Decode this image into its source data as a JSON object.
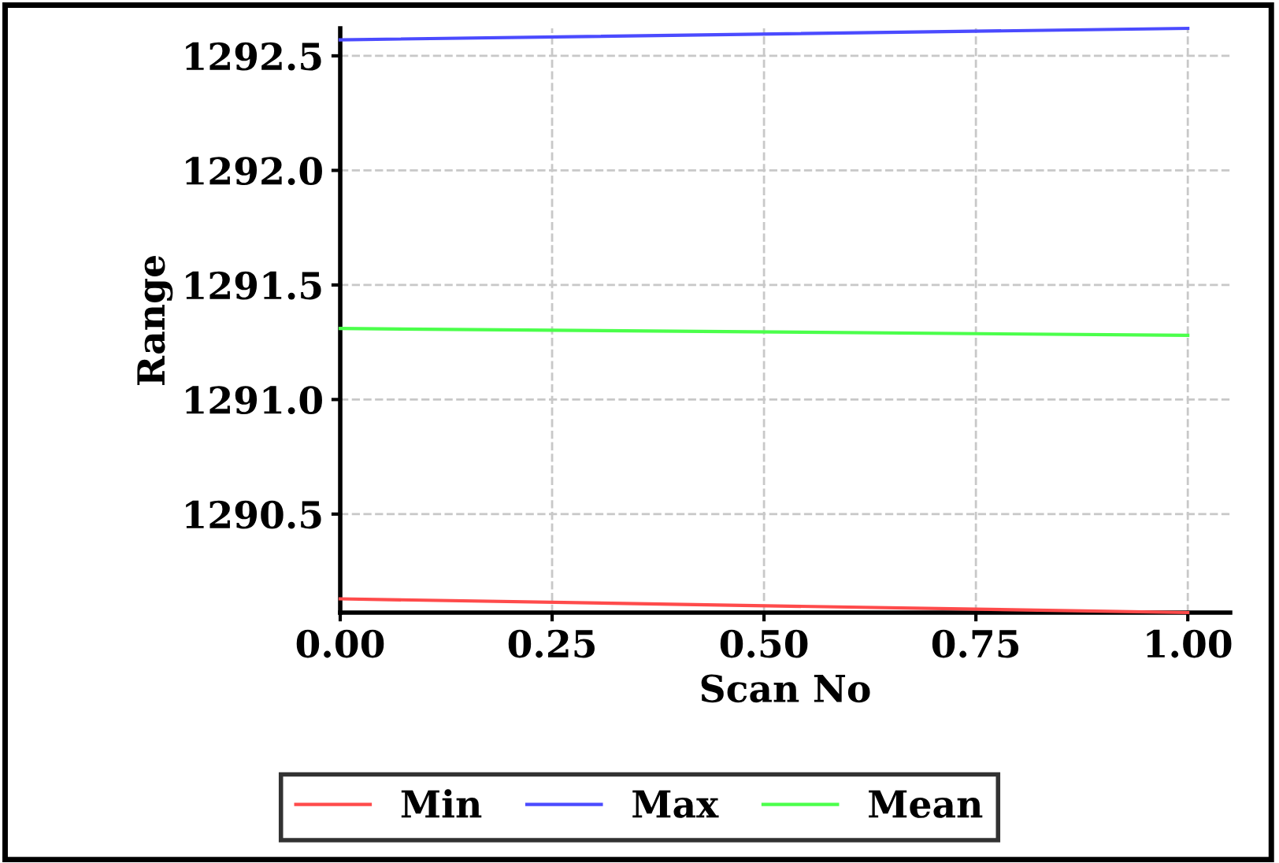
{
  "chart_data": {
    "type": "line",
    "xlabel": "Scan No",
    "ylabel": "Range",
    "x": [
      0,
      1
    ],
    "series": [
      {
        "name": "Min",
        "color": "#ff4b4b",
        "values": [
          1290.13,
          1290.07
        ]
      },
      {
        "name": "Max",
        "color": "#4b4bff",
        "values": [
          1292.57,
          1292.62
        ]
      },
      {
        "name": "Mean",
        "color": "#4bff4b",
        "values": [
          1291.31,
          1291.28
        ]
      }
    ],
    "xlim": [
      0,
      1.05
    ],
    "xticks": [
      {
        "value": 0,
        "label": "0.00"
      },
      {
        "value": 0.25,
        "label": "0.25"
      },
      {
        "value": 0.5,
        "label": "0.50"
      },
      {
        "value": 0.75,
        "label": "0.75"
      },
      {
        "value": 1,
        "label": "1.00"
      }
    ],
    "ylim": [
      1290.07,
      1292.62
    ],
    "yticks": [
      {
        "value": 1290.5,
        "label": "1290.5"
      },
      {
        "value": 1291,
        "label": "1291.0"
      },
      {
        "value": 1291.5,
        "label": "1291.5"
      },
      {
        "value": 1292,
        "label": "1292.0"
      },
      {
        "value": 1292.5,
        "label": "1292.5"
      }
    ],
    "grid": true,
    "legend": "bottom",
    "marker": "none",
    "line_style": "solid"
  }
}
